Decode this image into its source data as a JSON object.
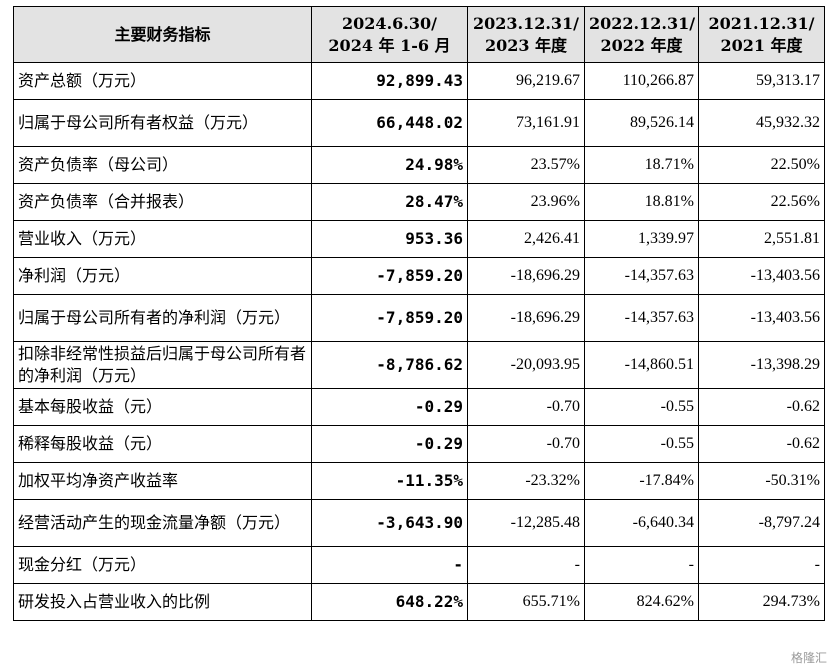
{
  "table": {
    "headers": [
      {
        "line1": "主要财务指标",
        "line2": ""
      },
      {
        "line1": "2024.6.30/",
        "line2": "2024 年 1-6 月"
      },
      {
        "line1": "2023.12.31/",
        "line2": "2023 年度"
      },
      {
        "line1": "2022.12.31/",
        "line2": "2022 年度"
      },
      {
        "line1": "2021.12.31/",
        "line2": "2021 年度"
      }
    ],
    "rows": [
      {
        "label": "资产总额（万元）",
        "values": [
          "92,899.43",
          "96,219.67",
          "110,266.87",
          "59,313.17"
        ]
      },
      {
        "label": "归属于母公司所有者权益（万元）",
        "values": [
          "66,448.02",
          "73,161.91",
          "89,526.14",
          "45,932.32"
        ]
      },
      {
        "label": "资产负债率（母公司）",
        "values": [
          "24.98%",
          "23.57%",
          "18.71%",
          "22.50%"
        ]
      },
      {
        "label": "资产负债率（合并报表）",
        "values": [
          "28.47%",
          "23.96%",
          "18.81%",
          "22.56%"
        ]
      },
      {
        "label": "营业收入（万元）",
        "values": [
          "953.36",
          "2,426.41",
          "1,339.97",
          "2,551.81"
        ]
      },
      {
        "label": "净利润（万元）",
        "values": [
          "-7,859.20",
          "-18,696.29",
          "-14,357.63",
          "-13,403.56"
        ]
      },
      {
        "label": "归属于母公司所有者的净利润（万元）",
        "values": [
          "-7,859.20",
          "-18,696.29",
          "-14,357.63",
          "-13,403.56"
        ]
      },
      {
        "label": "扣除非经常性损益后归属于母公司所有者的净利润（万元）",
        "values": [
          "-8,786.62",
          "-20,093.95",
          "-14,860.51",
          "-13,398.29"
        ]
      },
      {
        "label": "基本每股收益（元）",
        "values": [
          "-0.29",
          "-0.70",
          "-0.55",
          "-0.62"
        ]
      },
      {
        "label": "稀释每股收益（元）",
        "values": [
          "-0.29",
          "-0.70",
          "-0.55",
          "-0.62"
        ]
      },
      {
        "label": "加权平均净资产收益率",
        "values": [
          "-11.35%",
          "-23.32%",
          "-17.84%",
          "-50.31%"
        ]
      },
      {
        "label": "经营活动产生的现金流量净额（万元）",
        "values": [
          "-3,643.90",
          "-12,285.48",
          "-6,640.34",
          "-8,797.24"
        ]
      },
      {
        "label": "现金分红（万元）",
        "values": [
          "-",
          "-",
          "-",
          "-"
        ]
      },
      {
        "label": "研发投入占营业收入的比例",
        "values": [
          "648.22%",
          "655.71%",
          "824.62%",
          "294.73%"
        ]
      }
    ]
  },
  "watermark": "格隆汇"
}
